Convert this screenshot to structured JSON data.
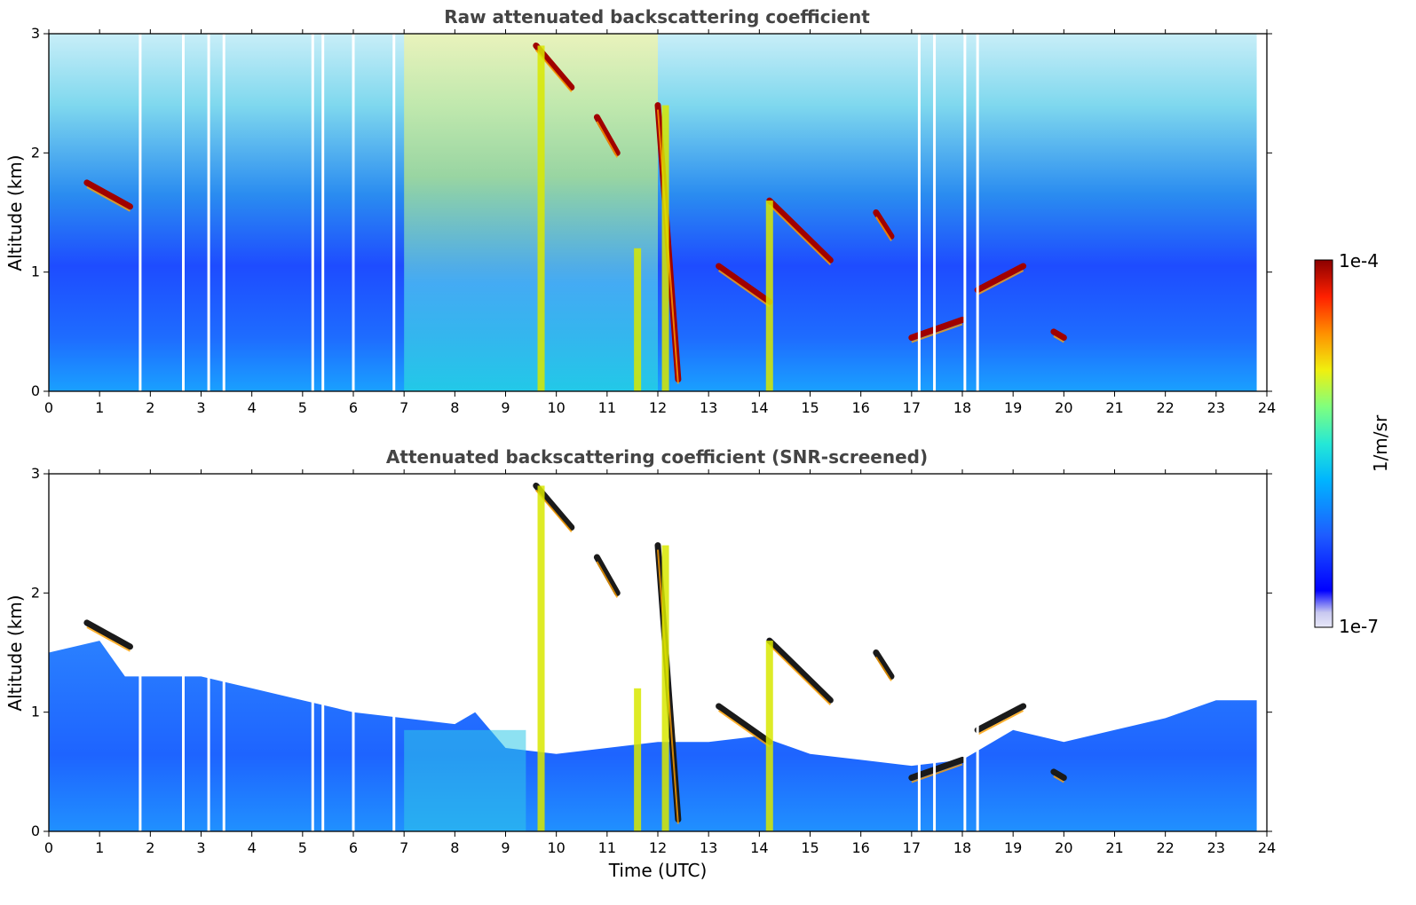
{
  "chart_data": [
    {
      "type": "heatmap",
      "title": "Raw attenuated backscattering coefficient",
      "xlabel": "",
      "ylabel": "Altitude (km)",
      "xlim": [
        0,
        24
      ],
      "ylim": [
        0,
        3
      ],
      "xticks": [
        "0",
        "1",
        "2",
        "3",
        "4",
        "5",
        "6",
        "7",
        "8",
        "9",
        "10",
        "11",
        "12",
        "13",
        "14",
        "15",
        "16",
        "17",
        "18",
        "19",
        "20",
        "21",
        "22",
        "23",
        "24"
      ],
      "yticks": [
        "0",
        "1",
        "2",
        "3"
      ],
      "cloud_layers": [
        {
          "time": [
            0.75,
            1.6
          ],
          "altitude": [
            1.75,
            1.55
          ]
        },
        {
          "time": [
            9.6,
            10.3
          ],
          "altitude": [
            2.9,
            2.55
          ]
        },
        {
          "time": [
            10.8,
            11.2
          ],
          "altitude": [
            2.3,
            2.0
          ]
        },
        {
          "time": [
            12.0,
            12.4
          ],
          "altitude": [
            2.4,
            0.1
          ]
        },
        {
          "time": [
            13.2,
            14.2
          ],
          "altitude": [
            1.05,
            0.75
          ]
        },
        {
          "time": [
            14.2,
            15.4
          ],
          "altitude": [
            1.6,
            1.1
          ]
        },
        {
          "time": [
            16.3,
            16.6
          ],
          "altitude": [
            1.5,
            1.3
          ]
        },
        {
          "time": [
            17.0,
            18.0
          ],
          "altitude": [
            0.45,
            0.6
          ]
        },
        {
          "time": [
            18.3,
            19.2
          ],
          "altitude": [
            0.85,
            1.05
          ]
        },
        {
          "time": [
            19.8,
            20.0
          ],
          "altitude": [
            0.5,
            0.45
          ]
        }
      ],
      "gap_times": [
        1.8,
        2.65,
        3.15,
        3.45,
        5.2,
        5.4,
        6.0,
        6.8,
        17.15,
        17.45,
        18.05,
        18.3
      ]
    },
    {
      "type": "heatmap",
      "title": "Attenuated backscattering coefficient (SNR-screened)",
      "xlabel": "Time (UTC)",
      "ylabel": "Altitude (km)",
      "xlim": [
        0,
        24
      ],
      "ylim": [
        0,
        3
      ],
      "xticks": [
        "0",
        "1",
        "2",
        "3",
        "4",
        "5",
        "6",
        "7",
        "8",
        "9",
        "10",
        "11",
        "12",
        "13",
        "14",
        "15",
        "16",
        "17",
        "18",
        "19",
        "20",
        "21",
        "22",
        "23",
        "24"
      ],
      "yticks": [
        "0",
        "1",
        "2",
        "3"
      ],
      "screened_top": [
        [
          0,
          1.5
        ],
        [
          1.0,
          1.6
        ],
        [
          1.5,
          1.3
        ],
        [
          2.0,
          1.3
        ],
        [
          3.0,
          1.3
        ],
        [
          4.0,
          1.2
        ],
        [
          5.0,
          1.1
        ],
        [
          6.0,
          1.0
        ],
        [
          7.0,
          0.95
        ],
        [
          8.0,
          0.9
        ],
        [
          8.4,
          1.0
        ],
        [
          9.0,
          0.7
        ],
        [
          10.0,
          0.65
        ],
        [
          11.0,
          0.7
        ],
        [
          12.0,
          0.75
        ],
        [
          13.0,
          0.75
        ],
        [
          14.0,
          0.8
        ],
        [
          15.0,
          0.65
        ],
        [
          16.0,
          0.6
        ],
        [
          17.0,
          0.55
        ],
        [
          18.0,
          0.6
        ],
        [
          19.0,
          0.85
        ],
        [
          20.0,
          0.75
        ],
        [
          21.0,
          0.85
        ],
        [
          22.0,
          0.95
        ],
        [
          23.0,
          1.1
        ],
        [
          23.8,
          1.1
        ]
      ],
      "gap_times": [
        1.8,
        2.65,
        3.15,
        3.45,
        5.2,
        5.4,
        6.0,
        6.8,
        17.15,
        17.45,
        18.05,
        18.3
      ]
    }
  ],
  "colorbar": {
    "label": "1/m/sr",
    "max_label": "1e-4",
    "min_label": "1e-7",
    "scale": "log",
    "colors": [
      "#e8e8f8",
      "#c8c8f0",
      "#0000ff",
      "#1e5cff",
      "#00b4ff",
      "#25e8d6",
      "#7fff7f",
      "#f0f00f",
      "#ff9000",
      "#ff2000",
      "#8b0000"
    ]
  }
}
